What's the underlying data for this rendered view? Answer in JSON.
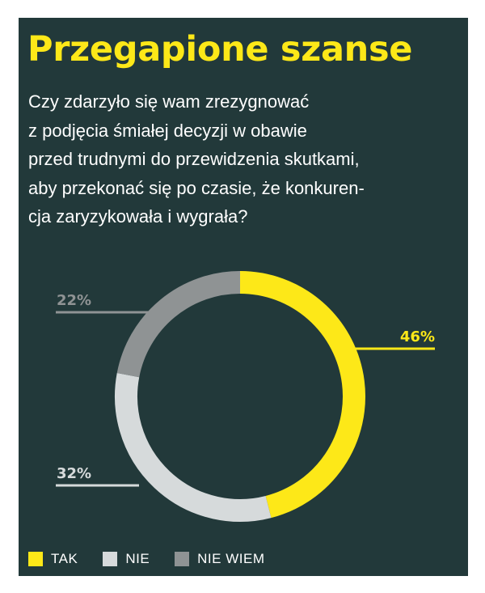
{
  "title": "Przegapione szanse",
  "question_lines": [
    "Czy zdarzyło się wam zrezygnować",
    "z podjęcia śmiałej decyzji w obawie",
    "przed trudnymi do przewidzenia skutkami,",
    "aby przekonać się po czasie, że konkuren-",
    "cja zaryzykowała i wygrała?"
  ],
  "chart_data": {
    "type": "pie",
    "title": "Przegapione szanse",
    "subtitle": "Czy zdarzyło się wam zrezygnować z podjęcia śmiałej decyzji w obawie przed trudnymi do przewidzenia skutkami, aby przekonać się po czasie, że konkurencja zaryzykowała i wygrała?",
    "categories": [
      "TAK",
      "NIE",
      "NIE WIEM"
    ],
    "values": [
      46,
      32,
      22
    ],
    "data_labels": [
      "46%",
      "32%",
      "22%"
    ],
    "colors": [
      "#fde818",
      "#d6dadb",
      "#8f9394"
    ],
    "donut": true,
    "legend_position": "bottom-left"
  },
  "colors": {
    "background": "#22393a",
    "title": "#fde818",
    "text": "#ffffff"
  }
}
